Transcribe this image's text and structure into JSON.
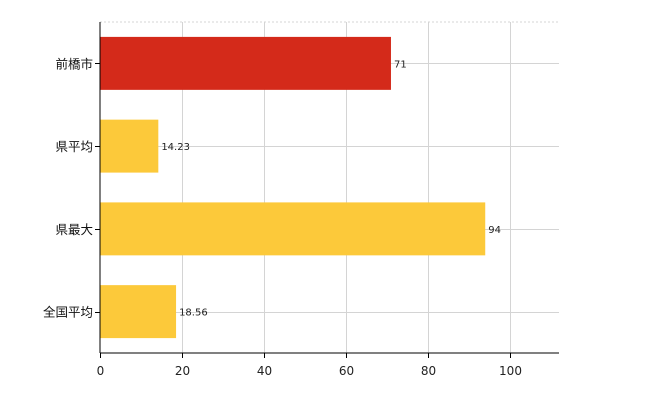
{
  "chart_data": {
    "type": "bar",
    "orientation": "horizontal",
    "categories": [
      "前橋市",
      "県平均",
      "県最大",
      "全国平均"
    ],
    "values": [
      71,
      14.23,
      94,
      18.56
    ],
    "data_labels": [
      "71",
      "14.23",
      "94",
      "18.56"
    ],
    "x_ticks": [
      "0",
      "20",
      "40",
      "60",
      "80",
      "100"
    ],
    "xlim": [
      0,
      112
    ],
    "grid": true,
    "legend": "none",
    "colors": {
      "highlight": "#d42a1a",
      "default": "#fcc93a",
      "grid": "#d4d4d4",
      "axis": "#000000"
    },
    "highlight_index": 0
  }
}
